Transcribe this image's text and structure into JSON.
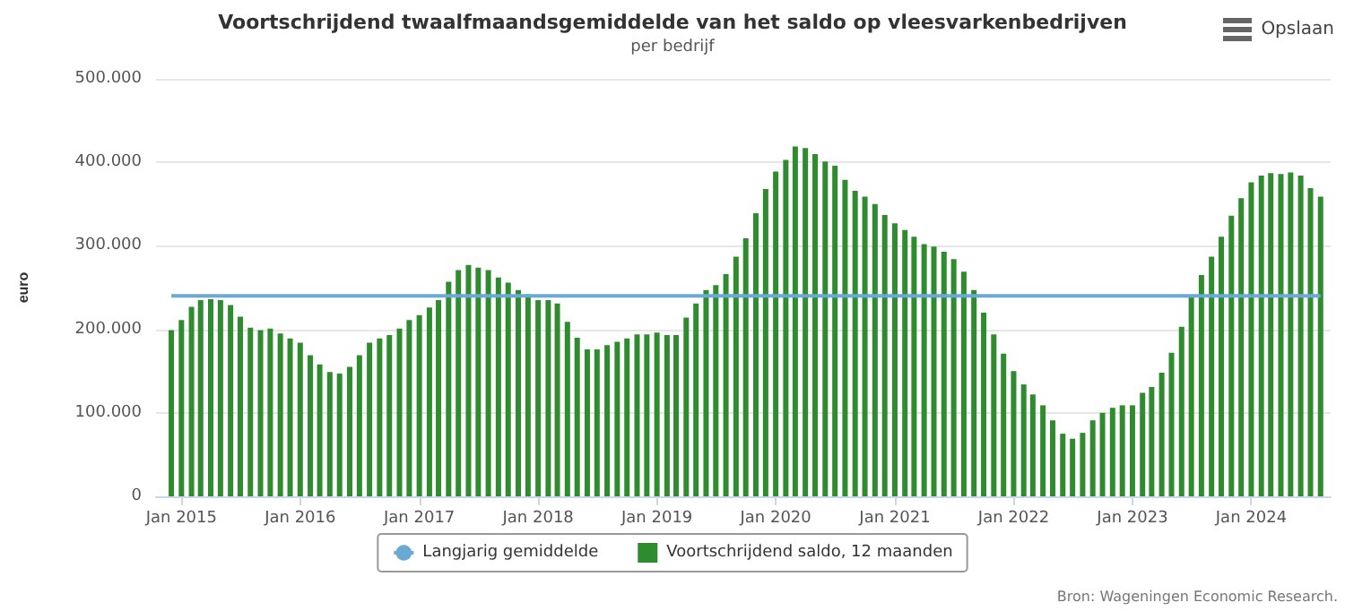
{
  "chart_data": {
    "type": "bar",
    "title": "Voortschrijdend twaalfmaandsgemiddelde van het saldo op vleesvarkenbedrijven",
    "subtitle": "per bedrijf",
    "ylabel": "euro",
    "annotations": [
      "Opslaan",
      "Bron: Wageningen Economic Research."
    ],
    "x": [
      "2014-12",
      "2015-01",
      "2015-02",
      "2015-03",
      "2015-04",
      "2015-05",
      "2015-06",
      "2015-07",
      "2015-08",
      "2015-09",
      "2015-10",
      "2015-11",
      "2015-12",
      "2016-01",
      "2016-02",
      "2016-03",
      "2016-04",
      "2016-05",
      "2016-06",
      "2016-07",
      "2016-08",
      "2016-09",
      "2016-10",
      "2016-11",
      "2016-12",
      "2017-01",
      "2017-02",
      "2017-03",
      "2017-04",
      "2017-05",
      "2017-06",
      "2017-07",
      "2017-08",
      "2017-09",
      "2017-10",
      "2017-11",
      "2017-12",
      "2018-01",
      "2018-02",
      "2018-03",
      "2018-04",
      "2018-05",
      "2018-06",
      "2018-07",
      "2018-08",
      "2018-09",
      "2018-10",
      "2018-11",
      "2018-12",
      "2019-01",
      "2019-02",
      "2019-03",
      "2019-04",
      "2019-05",
      "2019-06",
      "2019-07",
      "2019-08",
      "2019-09",
      "2019-10",
      "2019-11",
      "2019-12",
      "2020-01",
      "2020-02",
      "2020-03",
      "2020-04",
      "2020-05",
      "2020-06",
      "2020-07",
      "2020-08",
      "2020-09",
      "2020-10",
      "2020-11",
      "2020-12",
      "2021-01",
      "2021-02",
      "2021-03",
      "2021-04",
      "2021-05",
      "2021-06",
      "2021-07",
      "2021-08",
      "2021-09",
      "2021-10",
      "2021-11",
      "2021-12",
      "2022-01",
      "2022-02",
      "2022-03",
      "2022-04",
      "2022-05",
      "2022-06",
      "2022-07",
      "2022-08",
      "2022-09",
      "2022-10",
      "2022-11",
      "2022-12",
      "2023-01",
      "2023-02",
      "2023-03",
      "2023-04",
      "2023-05",
      "2023-06",
      "2023-07",
      "2023-08",
      "2023-09",
      "2023-10",
      "2023-11",
      "2023-12",
      "2024-01",
      "2024-02",
      "2024-03",
      "2024-04",
      "2024-05",
      "2024-06",
      "2024-07",
      "2024-08"
    ],
    "series": [
      {
        "name": "Langjarig gemiddelde",
        "type": "line",
        "color": "#6aa9d4",
        "x": [
          "2014-12",
          "2024-08"
        ],
        "values": [
          240000,
          240000
        ]
      },
      {
        "name": "Voortschrijdend saldo, 12 maanden",
        "color": "#2e8b2e",
        "values": [
          199000,
          211000,
          227000,
          235000,
          236000,
          235000,
          229000,
          215000,
          202000,
          199000,
          201000,
          195000,
          189000,
          184000,
          169000,
          158000,
          149000,
          147000,
          155000,
          169000,
          184000,
          189000,
          193000,
          201000,
          211000,
          217000,
          226000,
          235000,
          257000,
          271000,
          277000,
          274000,
          271000,
          262000,
          256000,
          247000,
          242000,
          235000,
          235000,
          231000,
          209000,
          190000,
          176000,
          176000,
          181000,
          185000,
          189000,
          194000,
          194000,
          196000,
          193000,
          193000,
          214000,
          231000,
          247000,
          253000,
          266000,
          287000,
          309000,
          339000,
          368000,
          389000,
          403000,
          419000,
          417000,
          410000,
          401000,
          396000,
          379000,
          366000,
          359000,
          350000,
          337000,
          327000,
          319000,
          311000,
          302000,
          299000,
          293000,
          284000,
          269000,
          247000,
          220000,
          194000,
          171000,
          150000,
          134000,
          122000,
          109000,
          91000,
          75000,
          69000,
          76000,
          91000,
          100000,
          106000,
          109000,
          109000,
          124000,
          131000,
          148000,
          172000,
          203000,
          240000,
          265000,
          287000,
          311000,
          336000,
          357000,
          376000,
          384000,
          387000,
          386000,
          388000,
          384000,
          369000,
          359000
        ]
      }
    ],
    "xlim": [
      "2014-10-15",
      "2024-09-01"
    ],
    "xticks": [
      {
        "value": "2015-01",
        "label": "Jan 2015"
      },
      {
        "value": "2016-01",
        "label": "Jan 2016"
      },
      {
        "value": "2017-01",
        "label": "Jan 2017"
      },
      {
        "value": "2018-01",
        "label": "Jan 2018"
      },
      {
        "value": "2019-01",
        "label": "Jan 2019"
      },
      {
        "value": "2020-01",
        "label": "Jan 2020"
      },
      {
        "value": "2021-01",
        "label": "Jan 2021"
      },
      {
        "value": "2022-01",
        "label": "Jan 2022"
      },
      {
        "value": "2023-01",
        "label": "Jan 2023"
      },
      {
        "value": "2024-01",
        "label": "Jan 2024"
      }
    ],
    "ylim": [
      0,
      500000
    ],
    "yticks": [
      0,
      {
        "value": 100000,
        "label": "100.000"
      },
      {
        "value": 200000,
        "label": "200.000"
      },
      {
        "value": 300000,
        "label": "300.000"
      },
      {
        "value": 400000,
        "label": "400.000"
      },
      {
        "value": 500000,
        "label": "500.000"
      }
    ],
    "grid": "y",
    "legend": "bottom"
  }
}
